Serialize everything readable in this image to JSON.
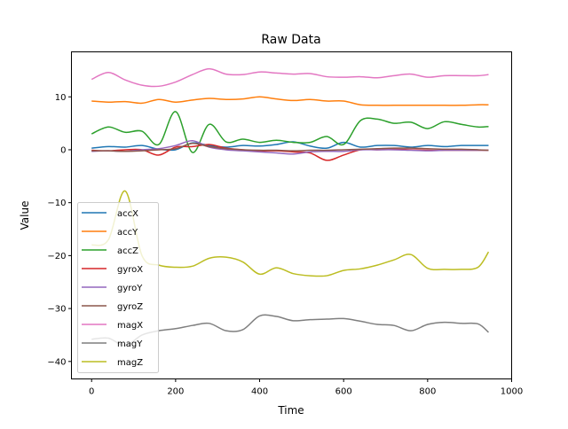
{
  "chart_data": {
    "type": "line",
    "title": "Raw Data",
    "xlabel": "Time",
    "ylabel": "Value",
    "xlim": [
      -48,
      1000
    ],
    "ylim": [
      -43.3,
      18.5
    ],
    "xticks": [
      0,
      200,
      400,
      600,
      800,
      1000
    ],
    "yticks": [
      10,
      0,
      -10,
      -20,
      -30,
      -40
    ],
    "xtick_labels": [
      "0",
      "200",
      "400",
      "600",
      "800",
      "1000"
    ],
    "ytick_labels": [
      "10",
      "0",
      "−10",
      "−20",
      "−30",
      "−40"
    ],
    "legend_position": "lower-left",
    "grid": false,
    "x": [
      0,
      40,
      80,
      120,
      160,
      200,
      240,
      280,
      320,
      360,
      400,
      440,
      480,
      520,
      560,
      600,
      640,
      680,
      720,
      760,
      800,
      840,
      880,
      920,
      945
    ],
    "series": [
      {
        "name": "accX",
        "color": "#1f77b4",
        "values": [
          0.3,
          0.6,
          0.5,
          0.8,
          0.1,
          0.0,
          1.3,
          0.8,
          0.5,
          0.8,
          0.7,
          1.0,
          1.5,
          0.7,
          0.3,
          1.4,
          0.5,
          0.8,
          0.8,
          0.5,
          0.8,
          0.6,
          0.8,
          0.8,
          0.8
        ]
      },
      {
        "name": "accY",
        "color": "#ff7f0e",
        "values": [
          9.2,
          9.0,
          9.1,
          8.8,
          9.5,
          9.0,
          9.4,
          9.7,
          9.5,
          9.6,
          10.0,
          9.6,
          9.3,
          9.5,
          9.2,
          9.2,
          8.5,
          8.4,
          8.4,
          8.4,
          8.4,
          8.4,
          8.4,
          8.5,
          8.5
        ]
      },
      {
        "name": "accZ",
        "color": "#2ca02c",
        "values": [
          3.0,
          4.3,
          3.3,
          3.5,
          1.0,
          7.2,
          -0.5,
          4.8,
          1.5,
          2.0,
          1.4,
          1.8,
          1.4,
          1.4,
          2.5,
          1.0,
          5.5,
          5.8,
          5.0,
          5.2,
          4.0,
          5.3,
          4.8,
          4.3,
          4.4
        ]
      },
      {
        "name": "gyroX",
        "color": "#d62728",
        "values": [
          -0.1,
          -0.2,
          0.0,
          0.0,
          -1.0,
          0.5,
          0.6,
          1.0,
          0.3,
          0.0,
          -0.2,
          -0.2,
          -0.4,
          -0.6,
          -2.0,
          -1.0,
          0.0,
          0.0,
          0.1,
          0.0,
          -0.1,
          -0.1,
          -0.1,
          -0.1,
          -0.1
        ]
      },
      {
        "name": "gyroY",
        "color": "#9467bd",
        "values": [
          -0.3,
          -0.2,
          -0.3,
          0.0,
          0.2,
          0.8,
          1.7,
          0.5,
          0.0,
          -0.2,
          -0.4,
          -0.6,
          -0.8,
          -0.4,
          -0.3,
          -0.3,
          0.0,
          0.0,
          0.0,
          -0.1,
          -0.2,
          -0.1,
          -0.1,
          -0.1,
          -0.1
        ]
      },
      {
        "name": "gyroZ",
        "color": "#8c564b",
        "values": [
          -0.2,
          -0.2,
          -0.3,
          -0.2,
          0.0,
          0.2,
          1.2,
          0.6,
          0.2,
          0.0,
          -0.1,
          -0.1,
          -0.2,
          -0.1,
          -0.1,
          0.0,
          0.1,
          0.2,
          0.3,
          0.3,
          0.2,
          0.1,
          0.1,
          0.0,
          -0.1
        ]
      },
      {
        "name": "magX",
        "color": "#e377c2",
        "values": [
          13.3,
          14.6,
          13.2,
          12.2,
          12.0,
          12.8,
          14.2,
          15.3,
          14.3,
          14.2,
          14.7,
          14.5,
          14.3,
          14.4,
          13.8,
          13.7,
          13.8,
          13.6,
          14.0,
          14.3,
          13.7,
          14.0,
          14.0,
          14.0,
          14.2
        ]
      },
      {
        "name": "magY",
        "color": "#7f7f7f",
        "values": [
          -35.8,
          -35.6,
          -37.0,
          -35.0,
          -34.2,
          -33.8,
          -33.2,
          -32.8,
          -34.2,
          -34.0,
          -31.4,
          -31.5,
          -32.3,
          -32.1,
          -32.0,
          -31.9,
          -32.4,
          -33.0,
          -33.2,
          -34.2,
          -33.0,
          -32.6,
          -32.8,
          -32.9,
          -34.5
        ]
      },
      {
        "name": "magZ",
        "color": "#bcbd22",
        "values": [
          -18.0,
          -17.0,
          -7.8,
          -20.0,
          -21.8,
          -22.2,
          -22.0,
          -20.5,
          -20.3,
          -21.2,
          -23.5,
          -22.3,
          -23.4,
          -23.8,
          -23.8,
          -22.8,
          -22.5,
          -21.8,
          -20.8,
          -19.8,
          -22.4,
          -22.6,
          -22.6,
          -22.2,
          -19.3
        ]
      }
    ]
  }
}
